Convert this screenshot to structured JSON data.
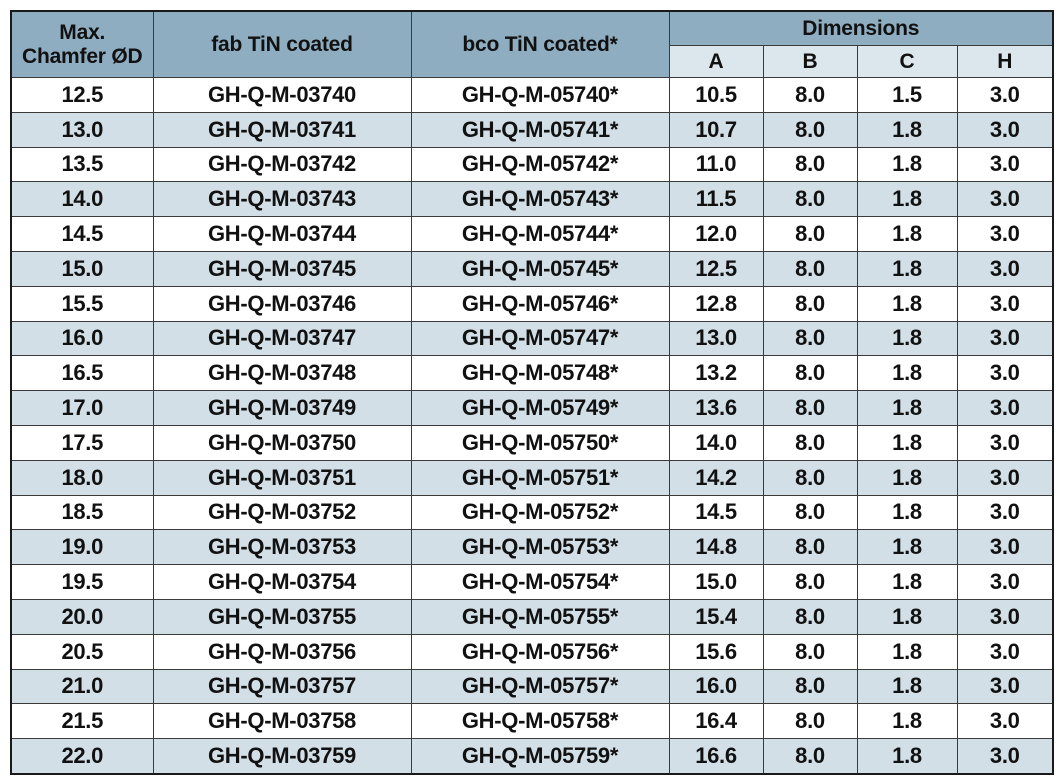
{
  "header": {
    "chamfer": "Max.\nChamfer ØD",
    "fab": "fab TiN coated",
    "bco": "bco TiN coated*",
    "dimensions": "Dimensions",
    "dim_cols": [
      "A",
      "B",
      "C",
      "H"
    ]
  },
  "rows": [
    [
      "12.5",
      "GH-Q-M-03740",
      "GH-Q-M-05740*",
      "10.5",
      "8.0",
      "1.5",
      "3.0"
    ],
    [
      "13.0",
      "GH-Q-M-03741",
      "GH-Q-M-05741*",
      "10.7",
      "8.0",
      "1.8",
      "3.0"
    ],
    [
      "13.5",
      "GH-Q-M-03742",
      "GH-Q-M-05742*",
      "11.0",
      "8.0",
      "1.8",
      "3.0"
    ],
    [
      "14.0",
      "GH-Q-M-03743",
      "GH-Q-M-05743*",
      "11.5",
      "8.0",
      "1.8",
      "3.0"
    ],
    [
      "14.5",
      "GH-Q-M-03744",
      "GH-Q-M-05744*",
      "12.0",
      "8.0",
      "1.8",
      "3.0"
    ],
    [
      "15.0",
      "GH-Q-M-03745",
      "GH-Q-M-05745*",
      "12.5",
      "8.0",
      "1.8",
      "3.0"
    ],
    [
      "15.5",
      "GH-Q-M-03746",
      "GH-Q-M-05746*",
      "12.8",
      "8.0",
      "1.8",
      "3.0"
    ],
    [
      "16.0",
      "GH-Q-M-03747",
      "GH-Q-M-05747*",
      "13.0",
      "8.0",
      "1.8",
      "3.0"
    ],
    [
      "16.5",
      "GH-Q-M-03748",
      "GH-Q-M-05748*",
      "13.2",
      "8.0",
      "1.8",
      "3.0"
    ],
    [
      "17.0",
      "GH-Q-M-03749",
      "GH-Q-M-05749*",
      "13.6",
      "8.0",
      "1.8",
      "3.0"
    ],
    [
      "17.5",
      "GH-Q-M-03750",
      "GH-Q-M-05750*",
      "14.0",
      "8.0",
      "1.8",
      "3.0"
    ],
    [
      "18.0",
      "GH-Q-M-03751",
      "GH-Q-M-05751*",
      "14.2",
      "8.0",
      "1.8",
      "3.0"
    ],
    [
      "18.5",
      "GH-Q-M-03752",
      "GH-Q-M-05752*",
      "14.5",
      "8.0",
      "1.8",
      "3.0"
    ],
    [
      "19.0",
      "GH-Q-M-03753",
      "GH-Q-M-05753*",
      "14.8",
      "8.0",
      "1.8",
      "3.0"
    ],
    [
      "19.5",
      "GH-Q-M-03754",
      "GH-Q-M-05754*",
      "15.0",
      "8.0",
      "1.8",
      "3.0"
    ],
    [
      "20.0",
      "GH-Q-M-03755",
      "GH-Q-M-05755*",
      "15.4",
      "8.0",
      "1.8",
      "3.0"
    ],
    [
      "20.5",
      "GH-Q-M-03756",
      "GH-Q-M-05756*",
      "15.6",
      "8.0",
      "1.8",
      "3.0"
    ],
    [
      "21.0",
      "GH-Q-M-03757",
      "GH-Q-M-05757*",
      "16.0",
      "8.0",
      "1.8",
      "3.0"
    ],
    [
      "21.5",
      "GH-Q-M-03758",
      "GH-Q-M-05758*",
      "16.4",
      "8.0",
      "1.8",
      "3.0"
    ],
    [
      "22.0",
      "GH-Q-M-03759",
      "GH-Q-M-05759*",
      "16.6",
      "8.0",
      "1.8",
      "3.0"
    ]
  ]
}
